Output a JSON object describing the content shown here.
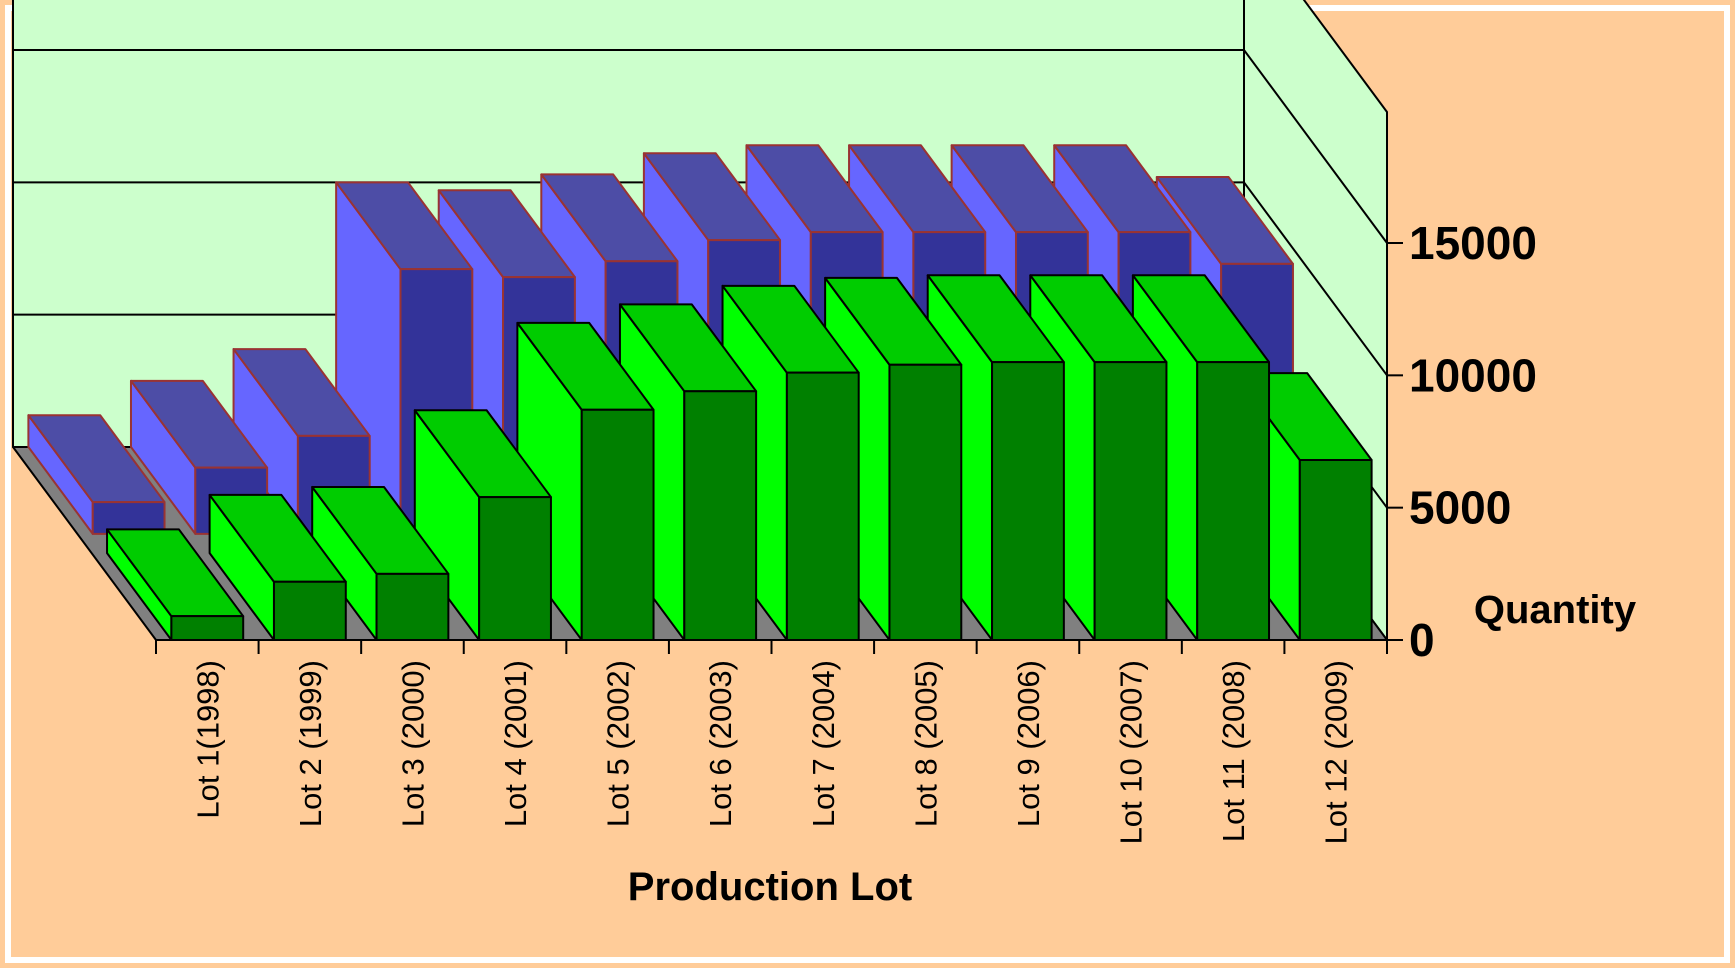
{
  "chart_data": {
    "type": "bar",
    "title": "",
    "xlabel": "Production Lot",
    "ylabel": "Quantity",
    "ylim": [
      0,
      15000
    ],
    "yticks": [
      "0",
      "5000",
      "10000",
      "15000"
    ],
    "grid": true,
    "legend": "none",
    "view": "3d",
    "categories": [
      "Lot 1(1998)",
      "Lot 2 (1999)",
      "Lot 3 (2000)",
      "Lot 4 (2001)",
      "Lot 5 (2002)",
      "Lot 6 (2003)",
      "Lot 7 (2004)",
      "Lot 8 (2005)",
      "Lot 9 (2006)",
      "Lot 10 (2007)",
      "Lot 11 (2008)",
      "Lot 12 (2009)"
    ],
    "series": [
      {
        "values": [
          900,
          2200,
          2500,
          5400,
          8700,
          9400,
          10100,
          10400,
          10500,
          10500,
          10500,
          6800
        ]
      },
      {
        "values": [
          1200,
          2500,
          3700,
          10000,
          9700,
          10300,
          11100,
          11400,
          11400,
          11400,
          11400,
          10200
        ]
      }
    ],
    "colors": {
      "background": "#ffcc99",
      "wall": "#ccffcc",
      "floor": "#808080",
      "front_face": "#00ff00",
      "front_side": "#008000",
      "front_top": "#00cc00",
      "back_face": "#6666ff",
      "back_side": "#333399",
      "back_top": "#4d4da6",
      "back_edge": "#993333",
      "grid": "#000000"
    }
  }
}
